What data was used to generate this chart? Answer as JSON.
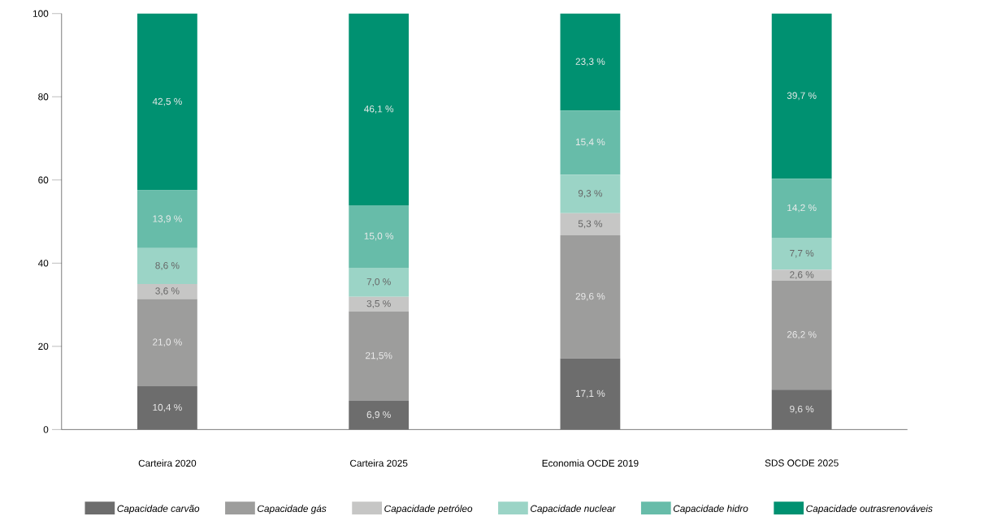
{
  "chart_data": {
    "type": "bar",
    "stacked": true,
    "legend": "bottom",
    "categories": [
      "Carteira 2020",
      "Carteira 2025",
      "Economia OCDE 2019",
      "SDS OCDE 2025"
    ],
    "ylim": [
      0,
      100
    ],
    "yticks": [
      0,
      20,
      40,
      60,
      80,
      100
    ],
    "series": [
      {
        "name": "Capacidade carvão",
        "color": "#6d6d6d",
        "values": [
          10.4,
          6.9,
          17.1,
          9.6
        ],
        "value_labels": [
          "10,4 %",
          "6,9 %",
          "17,1 %",
          "9,6 %"
        ]
      },
      {
        "name": "Capacidade gás",
        "color": "#9d9d9c",
        "values": [
          21.0,
          21.5,
          29.6,
          26.2
        ],
        "value_labels": [
          "21,0 %",
          "21,5%",
          "29,6 %",
          "26,2 %"
        ]
      },
      {
        "name": "Capacidade petróleo",
        "color": "#c6c6c5",
        "values": [
          3.6,
          3.5,
          5.3,
          2.6
        ],
        "value_labels": [
          "3,6 %",
          "3,5 %",
          "5,3 %",
          "2,6 %"
        ]
      },
      {
        "name": "Capacidade nuclear",
        "color": "#9bd4c6",
        "values": [
          8.6,
          7.0,
          9.3,
          7.7
        ],
        "value_labels": [
          "8,6 %",
          "7,0 %",
          "9,3 %",
          "7,7 %"
        ]
      },
      {
        "name": "Capacidade  hidro",
        "color": "#67bca9",
        "values": [
          13.9,
          15.0,
          15.4,
          14.2
        ],
        "value_labels": [
          "13,9 %",
          "15,0 %",
          "15,4 %",
          "14,2 %"
        ]
      },
      {
        "name": "Capacidade outrasrenováveis",
        "color": "#009171",
        "values": [
          42.5,
          46.1,
          23.3,
          39.7
        ],
        "value_labels": [
          "42,5 %",
          "46,1 %",
          "23,3 %",
          "39,7 %"
        ]
      }
    ]
  }
}
